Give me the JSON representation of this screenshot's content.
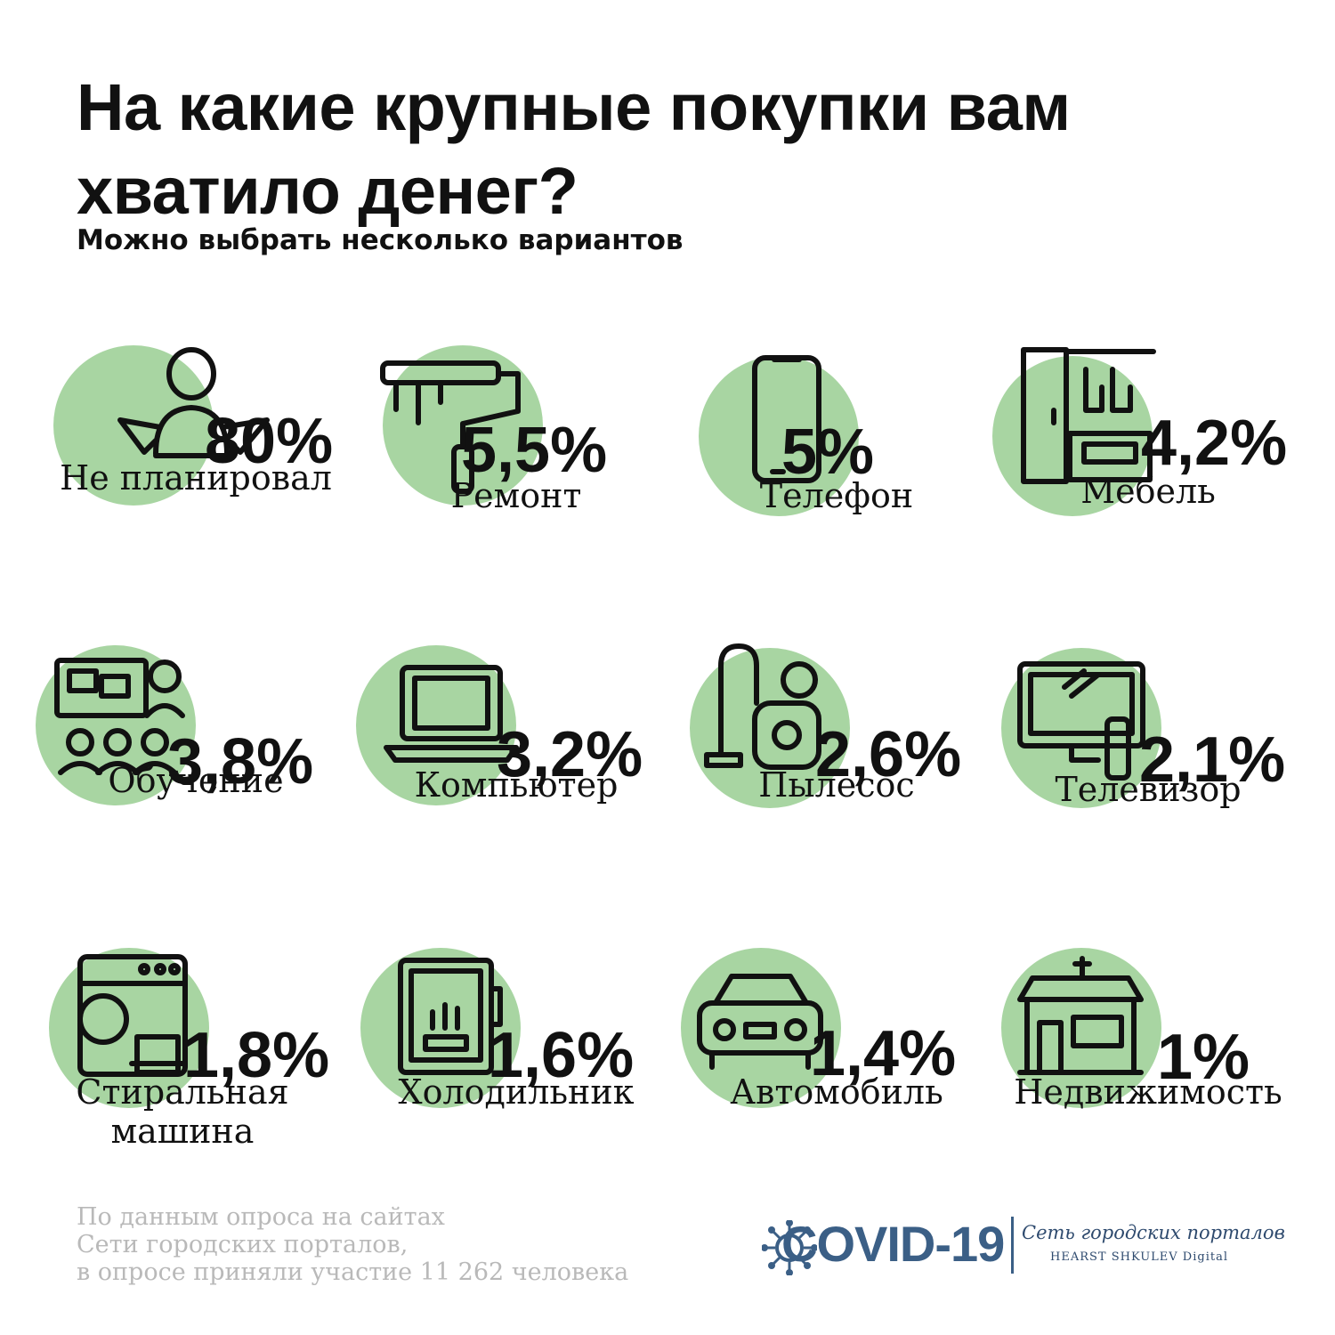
{
  "header": {
    "title": "На какие крупные покупки вам хватило денег?",
    "subtitle": "Можно выбрать несколько вариантов"
  },
  "colors": {
    "blob": "#a8d5a2",
    "text": "#111111",
    "source": "#b9b9b9",
    "brand": "#3b5f86"
  },
  "chart_data": {
    "type": "pictogram",
    "title": "На какие крупные покупки вам хватило денег?",
    "subtitle": "Можно выбрать несколько вариантов",
    "unit": "%",
    "categories": [
      "Не планировал",
      "Ремонт",
      "Телефон",
      "Мебель",
      "Обучение",
      "Компьютер",
      "Пылесос",
      "Телевизор",
      "Стиральная машина",
      "Холодильник",
      "Автомобиль",
      "Недвижимость"
    ],
    "values": [
      80,
      5.5,
      5,
      4.2,
      3.8,
      3.2,
      2.6,
      2.1,
      1.8,
      1.6,
      1.4,
      1
    ],
    "items": [
      {
        "label": "Не планировал",
        "value": 80,
        "display": "80%",
        "icon": "shrugging-person-icon"
      },
      {
        "label": "Ремонт",
        "value": 5.5,
        "display": "5,5%",
        "icon": "paint-roller-icon"
      },
      {
        "label": "Телефон",
        "value": 5,
        "display": "5%",
        "icon": "smartphone-icon"
      },
      {
        "label": "Мебель",
        "value": 4.2,
        "display": "4,2%",
        "icon": "wardrobe-icon"
      },
      {
        "label": "Обучение",
        "value": 3.8,
        "display": "3,8%",
        "icon": "online-class-icon"
      },
      {
        "label": "Компьютер",
        "value": 3.2,
        "display": "3,2%",
        "icon": "laptop-icon"
      },
      {
        "label": "Пылесос",
        "value": 2.6,
        "display": "2,6%",
        "icon": "vacuum-cleaner-icon"
      },
      {
        "label": "Телевизор",
        "value": 2.1,
        "display": "2,1%",
        "icon": "tv-icon"
      },
      {
        "label": "Стиральная машина",
        "value": 1.8,
        "display": "1,8%",
        "icon": "washing-machine-icon"
      },
      {
        "label": "Холодильник",
        "value": 1.6,
        "display": "1,6%",
        "icon": "fridge-icon"
      },
      {
        "label": "Автомобиль",
        "value": 1.4,
        "display": "1,4%",
        "icon": "car-icon"
      },
      {
        "label": "Недвижимость",
        "value": 1,
        "display": "1%",
        "icon": "house-icon"
      }
    ]
  },
  "footer": {
    "source_lines": [
      "По данным опроса на сайтах",
      "Сети городских порталов,",
      "в опросе приняли участие 11 262 человека"
    ],
    "logo_text": "COVID-19",
    "brand_line1": "Сеть городских порталов",
    "brand_line2": "HEARST SHKULEV Digital"
  }
}
